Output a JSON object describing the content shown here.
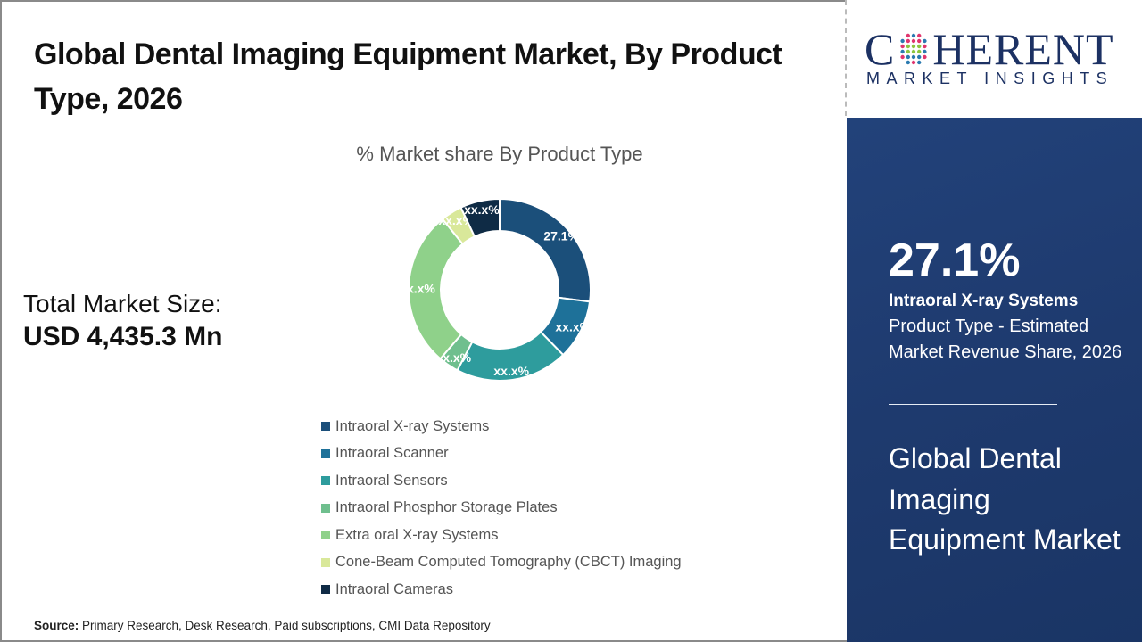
{
  "header": {
    "title": "Global Dental Imaging Equipment Market, By Product Type, 2026"
  },
  "logo": {
    "brand_pre": "C",
    "brand_post": "HERENT",
    "tagline": "MARKET INSIGHTS"
  },
  "summary": {
    "total_label": "Total Market Size:",
    "total_value": "USD 4,435.3 Mn"
  },
  "side_panel": {
    "highlight_pct": "27.1%",
    "segment_name": "Intraoral X-ray Systems",
    "description": "Product Type - Estimated Market Revenue Share, 2026",
    "market_name": "Global Dental Imaging Equipment Market"
  },
  "source": {
    "label": "Source:",
    "text": " Primary Research, Desk Research, Paid subscriptions, CMI Data Repository"
  },
  "chart_data": {
    "type": "pie",
    "subtype": "donut",
    "title": "% Market share By Product Type",
    "categories": [
      "Intraoral X-ray Systems",
      "Intraoral Scanner",
      "Intraoral Sensors",
      "Intraoral Phosphor Storage Plates",
      "Extra oral X-ray Systems",
      "Cone-Beam Computed Tomography (CBCT) Imaging",
      "Intraoral Cameras"
    ],
    "values": [
      27.1,
      10.6,
      20.0,
      3.6,
      27.9,
      3.8,
      7.0
    ],
    "data_labels": [
      "27.1%",
      "xx.x%",
      "xx.x%",
      "xx.x%",
      "xx.x%",
      "xx.x%",
      "xx.x%"
    ],
    "colors": [
      "#1b4f7a",
      "#1e7199",
      "#2e9c9d",
      "#6fbf8e",
      "#8fd18a",
      "#d9e89a",
      "#0f2b45"
    ],
    "legend_position": "bottom",
    "xlabel": "",
    "ylabel": ""
  }
}
